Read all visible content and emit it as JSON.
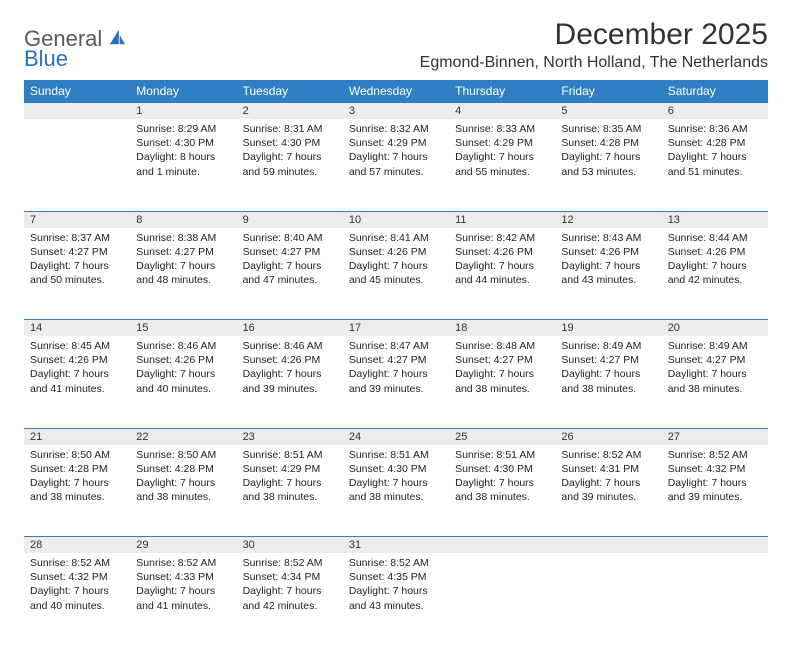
{
  "logo": {
    "line1": "General",
    "line2": "Blue"
  },
  "title": "December 2025",
  "location": "Egmond-Binnen, North Holland, The Netherlands",
  "header_bg": "#2f7fc2",
  "daynum_bg": "#ececec",
  "border_color": "#2f7fc2",
  "days": [
    "Sunday",
    "Monday",
    "Tuesday",
    "Wednesday",
    "Thursday",
    "Friday",
    "Saturday"
  ],
  "weeks": [
    {
      "nums": [
        "",
        "1",
        "2",
        "3",
        "4",
        "5",
        "6"
      ],
      "cells": [
        {},
        {
          "sunrise": "Sunrise: 8:29 AM",
          "sunset": "Sunset: 4:30 PM",
          "day1": "Daylight: 8 hours",
          "day2": "and 1 minute."
        },
        {
          "sunrise": "Sunrise: 8:31 AM",
          "sunset": "Sunset: 4:30 PM",
          "day1": "Daylight: 7 hours",
          "day2": "and 59 minutes."
        },
        {
          "sunrise": "Sunrise: 8:32 AM",
          "sunset": "Sunset: 4:29 PM",
          "day1": "Daylight: 7 hours",
          "day2": "and 57 minutes."
        },
        {
          "sunrise": "Sunrise: 8:33 AM",
          "sunset": "Sunset: 4:29 PM",
          "day1": "Daylight: 7 hours",
          "day2": "and 55 minutes."
        },
        {
          "sunrise": "Sunrise: 8:35 AM",
          "sunset": "Sunset: 4:28 PM",
          "day1": "Daylight: 7 hours",
          "day2": "and 53 minutes."
        },
        {
          "sunrise": "Sunrise: 8:36 AM",
          "sunset": "Sunset: 4:28 PM",
          "day1": "Daylight: 7 hours",
          "day2": "and 51 minutes."
        }
      ]
    },
    {
      "nums": [
        "7",
        "8",
        "9",
        "10",
        "11",
        "12",
        "13"
      ],
      "cells": [
        {
          "sunrise": "Sunrise: 8:37 AM",
          "sunset": "Sunset: 4:27 PM",
          "day1": "Daylight: 7 hours",
          "day2": "and 50 minutes."
        },
        {
          "sunrise": "Sunrise: 8:38 AM",
          "sunset": "Sunset: 4:27 PM",
          "day1": "Daylight: 7 hours",
          "day2": "and 48 minutes."
        },
        {
          "sunrise": "Sunrise: 8:40 AM",
          "sunset": "Sunset: 4:27 PM",
          "day1": "Daylight: 7 hours",
          "day2": "and 47 minutes."
        },
        {
          "sunrise": "Sunrise: 8:41 AM",
          "sunset": "Sunset: 4:26 PM",
          "day1": "Daylight: 7 hours",
          "day2": "and 45 minutes."
        },
        {
          "sunrise": "Sunrise: 8:42 AM",
          "sunset": "Sunset: 4:26 PM",
          "day1": "Daylight: 7 hours",
          "day2": "and 44 minutes."
        },
        {
          "sunrise": "Sunrise: 8:43 AM",
          "sunset": "Sunset: 4:26 PM",
          "day1": "Daylight: 7 hours",
          "day2": "and 43 minutes."
        },
        {
          "sunrise": "Sunrise: 8:44 AM",
          "sunset": "Sunset: 4:26 PM",
          "day1": "Daylight: 7 hours",
          "day2": "and 42 minutes."
        }
      ]
    },
    {
      "nums": [
        "14",
        "15",
        "16",
        "17",
        "18",
        "19",
        "20"
      ],
      "cells": [
        {
          "sunrise": "Sunrise: 8:45 AM",
          "sunset": "Sunset: 4:26 PM",
          "day1": "Daylight: 7 hours",
          "day2": "and 41 minutes."
        },
        {
          "sunrise": "Sunrise: 8:46 AM",
          "sunset": "Sunset: 4:26 PM",
          "day1": "Daylight: 7 hours",
          "day2": "and 40 minutes."
        },
        {
          "sunrise": "Sunrise: 8:46 AM",
          "sunset": "Sunset: 4:26 PM",
          "day1": "Daylight: 7 hours",
          "day2": "and 39 minutes."
        },
        {
          "sunrise": "Sunrise: 8:47 AM",
          "sunset": "Sunset: 4:27 PM",
          "day1": "Daylight: 7 hours",
          "day2": "and 39 minutes."
        },
        {
          "sunrise": "Sunrise: 8:48 AM",
          "sunset": "Sunset: 4:27 PM",
          "day1": "Daylight: 7 hours",
          "day2": "and 38 minutes."
        },
        {
          "sunrise": "Sunrise: 8:49 AM",
          "sunset": "Sunset: 4:27 PM",
          "day1": "Daylight: 7 hours",
          "day2": "and 38 minutes."
        },
        {
          "sunrise": "Sunrise: 8:49 AM",
          "sunset": "Sunset: 4:27 PM",
          "day1": "Daylight: 7 hours",
          "day2": "and 38 minutes."
        }
      ]
    },
    {
      "nums": [
        "21",
        "22",
        "23",
        "24",
        "25",
        "26",
        "27"
      ],
      "cells": [
        {
          "sunrise": "Sunrise: 8:50 AM",
          "sunset": "Sunset: 4:28 PM",
          "day1": "Daylight: 7 hours",
          "day2": "and 38 minutes."
        },
        {
          "sunrise": "Sunrise: 8:50 AM",
          "sunset": "Sunset: 4:28 PM",
          "day1": "Daylight: 7 hours",
          "day2": "and 38 minutes."
        },
        {
          "sunrise": "Sunrise: 8:51 AM",
          "sunset": "Sunset: 4:29 PM",
          "day1": "Daylight: 7 hours",
          "day2": "and 38 minutes."
        },
        {
          "sunrise": "Sunrise: 8:51 AM",
          "sunset": "Sunset: 4:30 PM",
          "day1": "Daylight: 7 hours",
          "day2": "and 38 minutes."
        },
        {
          "sunrise": "Sunrise: 8:51 AM",
          "sunset": "Sunset: 4:30 PM",
          "day1": "Daylight: 7 hours",
          "day2": "and 38 minutes."
        },
        {
          "sunrise": "Sunrise: 8:52 AM",
          "sunset": "Sunset: 4:31 PM",
          "day1": "Daylight: 7 hours",
          "day2": "and 39 minutes."
        },
        {
          "sunrise": "Sunrise: 8:52 AM",
          "sunset": "Sunset: 4:32 PM",
          "day1": "Daylight: 7 hours",
          "day2": "and 39 minutes."
        }
      ]
    },
    {
      "nums": [
        "28",
        "29",
        "30",
        "31",
        "",
        "",
        ""
      ],
      "cells": [
        {
          "sunrise": "Sunrise: 8:52 AM",
          "sunset": "Sunset: 4:32 PM",
          "day1": "Daylight: 7 hours",
          "day2": "and 40 minutes."
        },
        {
          "sunrise": "Sunrise: 8:52 AM",
          "sunset": "Sunset: 4:33 PM",
          "day1": "Daylight: 7 hours",
          "day2": "and 41 minutes."
        },
        {
          "sunrise": "Sunrise: 8:52 AM",
          "sunset": "Sunset: 4:34 PM",
          "day1": "Daylight: 7 hours",
          "day2": "and 42 minutes."
        },
        {
          "sunrise": "Sunrise: 8:52 AM",
          "sunset": "Sunset: 4:35 PM",
          "day1": "Daylight: 7 hours",
          "day2": "and 43 minutes."
        },
        {},
        {},
        {}
      ]
    }
  ]
}
